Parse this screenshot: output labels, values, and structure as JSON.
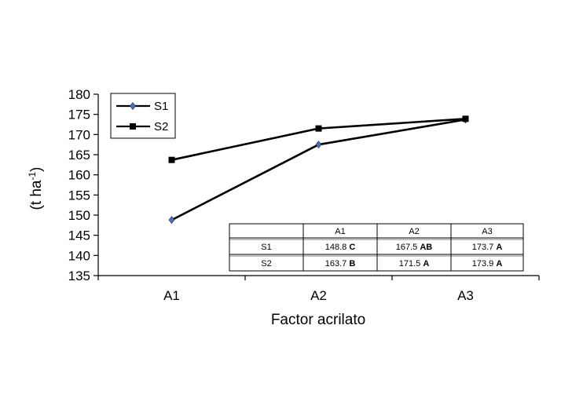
{
  "chart_data": {
    "type": "line",
    "title": "",
    "xlabel": "Factor acrilato",
    "ylabel": "(t ha-1)",
    "ylabel_parts": {
      "text": "(t ha",
      "sup": "-1",
      "close": ")"
    },
    "ylim": [
      135,
      180
    ],
    "yticks": [
      135,
      140,
      145,
      150,
      155,
      160,
      165,
      170,
      175,
      180
    ],
    "categories": [
      "A1",
      "A2",
      "A3"
    ],
    "grid": false,
    "legend": "top-left",
    "series": [
      {
        "name": "S1",
        "values": [
          148.8,
          167.5,
          173.7
        ],
        "marker": "diamond",
        "marker_color": "#4f6fb3",
        "line_color": "#000000"
      },
      {
        "name": "S2",
        "values": [
          163.7,
          171.5,
          173.9
        ],
        "marker": "square",
        "marker_color": "#000000",
        "line_color": "#000000"
      }
    ],
    "table": {
      "header": [
        "",
        "A1",
        "A2",
        "A3"
      ],
      "rows": [
        {
          "label": "S1",
          "cells": [
            {
              "value": "148.8",
              "letter": "C"
            },
            {
              "value": "167.5",
              "letter": "AB"
            },
            {
              "value": "173.7",
              "letter": "A"
            }
          ]
        },
        {
          "label": "S2",
          "cells": [
            {
              "value": "163.7",
              "letter": "B"
            },
            {
              "value": "171.5",
              "letter": "A"
            },
            {
              "value": "173.9",
              "letter": "A"
            }
          ]
        }
      ]
    }
  }
}
